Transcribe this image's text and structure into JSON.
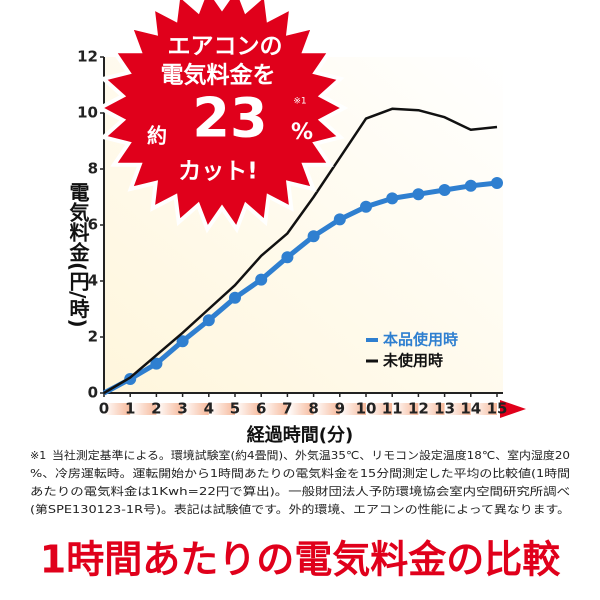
{
  "chart_data": {
    "type": "line",
    "title": "1時間あたりの電気料金の比較",
    "x_label": "経過時間(分)",
    "y_label": "電気料金(円/時)",
    "x": [
      0,
      1,
      2,
      3,
      4,
      5,
      6,
      7,
      8,
      9,
      10,
      11,
      12,
      13,
      14,
      15
    ],
    "xlim": [
      0,
      15
    ],
    "xticks": [
      0,
      1,
      2,
      3,
      4,
      5,
      6,
      7,
      8,
      9,
      10,
      11,
      12,
      13,
      14,
      15
    ],
    "ylim": [
      0,
      12
    ],
    "yticks": [
      0,
      2,
      4,
      6,
      8,
      10,
      12
    ],
    "legend": "lower right",
    "series": [
      {
        "name": "本品使用時",
        "color": "#2f7fd0",
        "values": [
          0,
          0.5,
          1.05,
          1.85,
          2.6,
          3.4,
          4.05,
          4.85,
          5.6,
          6.2,
          6.65,
          6.95,
          7.1,
          7.25,
          7.4,
          7.5
        ]
      },
      {
        "name": "未使用時",
        "color": "#111111",
        "values": [
          0,
          0.55,
          1.35,
          2.15,
          3.0,
          3.85,
          4.9,
          5.7,
          7.0,
          8.4,
          9.8,
          10.15,
          10.1,
          9.85,
          9.4,
          9.5
        ]
      }
    ],
    "callout": {
      "line1": "エアコンの",
      "line2": "電気料金を",
      "prefix": "約",
      "number": "23",
      "unit": "%",
      "note": "※1",
      "line3": "カット!"
    },
    "footnote": {
      "mark": "※1",
      "lines": [
        "当社測定基準による。環境試験室(約4畳間)、外気温35℃、リモコン設定温度18℃、室内湿度20",
        "%、冷房運転時。運転開始から1時間あたりの電気料金を15分間測定した平均の比較値(1時間",
        "あたりの電気料金は1Kwh=22円で算出)。一般財団法人予防環境協会室内空間研究所調べ",
        "(第SPE130123-1R号)。表記は試験値です。外的環境、エアコンの性能によって異なります。"
      ]
    }
  }
}
